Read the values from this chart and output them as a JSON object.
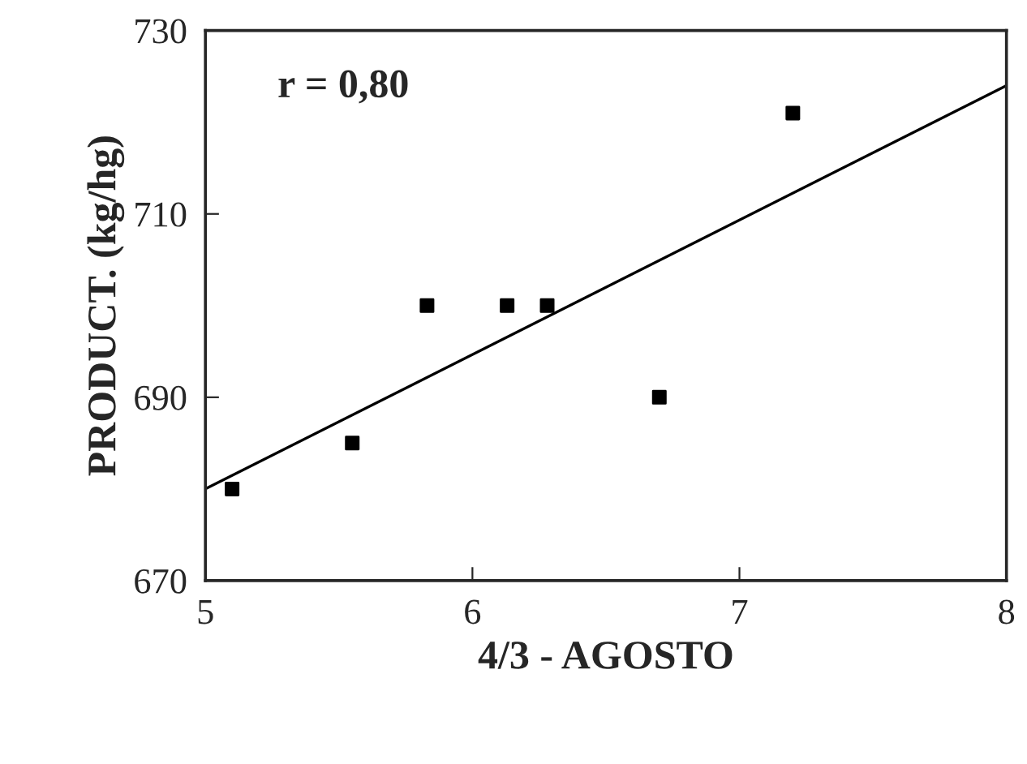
{
  "chart_data": {
    "type": "scatter",
    "xlabel": "4/3 - AGOSTO",
    "ylabel": "PRODUCT. (kg/hg)",
    "annotations": [
      "r = 0,80"
    ],
    "xlim": [
      5,
      8
    ],
    "xticks": [
      5,
      6,
      7,
      8
    ],
    "ylim": [
      670,
      730
    ],
    "yticks": [
      670,
      690,
      710,
      730
    ],
    "grid": false,
    "series": [
      {
        "color": "#000000",
        "marker": "square",
        "x": [
          5.1,
          5.55,
          5.83,
          6.13,
          6.28,
          6.7,
          7.2
        ],
        "values": [
          680,
          685,
          700,
          700,
          700,
          690,
          721
        ]
      },
      {
        "type": "line",
        "color": "#000000",
        "x": [
          5,
          8
        ],
        "values": [
          680,
          724
        ]
      }
    ]
  }
}
